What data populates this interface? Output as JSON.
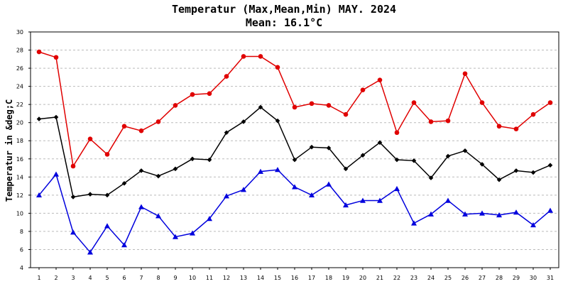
{
  "chart_data": {
    "type": "line",
    "title": "Temperatur (Max,Mean,Min) MAY. 2024",
    "subtitle": "Mean: 16.1°C",
    "xlabel": "",
    "ylabel": "Temperatur in &deg;C",
    "ylim": [
      4,
      30
    ],
    "yticks": [
      "4",
      "6",
      "8",
      "10",
      "12",
      "14",
      "16",
      "18",
      "20",
      "22",
      "24",
      "26",
      "28",
      "30"
    ],
    "grid": true,
    "categories": [
      "1",
      "2",
      "3",
      "4",
      "5",
      "6",
      "7",
      "8",
      "9",
      "10",
      "11",
      "12",
      "13",
      "14",
      "15",
      "16",
      "17",
      "18",
      "19",
      "20",
      "21",
      "22",
      "23",
      "24",
      "25",
      "26",
      "27",
      "28",
      "29",
      "30",
      "31"
    ],
    "series": [
      {
        "name": "Max",
        "color": "#e00000",
        "marker": "circle",
        "values": [
          27.8,
          27.2,
          15.2,
          18.2,
          16.5,
          19.6,
          19.1,
          20.1,
          21.9,
          23.1,
          23.2,
          25.1,
          27.3,
          27.3,
          26.1,
          21.7,
          22.1,
          21.9,
          20.9,
          23.6,
          24.7,
          18.9,
          22.2,
          20.1,
          20.2,
          25.4,
          22.2,
          19.6,
          19.3,
          20.9,
          22.2
        ]
      },
      {
        "name": "Mean",
        "color": "#000000",
        "marker": "diamond",
        "values": [
          20.4,
          20.6,
          11.8,
          12.1,
          12.0,
          13.3,
          14.7,
          14.1,
          14.9,
          16.0,
          15.9,
          18.9,
          20.1,
          21.7,
          20.2,
          15.9,
          17.3,
          17.2,
          14.9,
          16.4,
          17.8,
          15.9,
          15.8,
          13.9,
          16.3,
          16.9,
          15.4,
          13.7,
          14.7,
          14.5,
          15.3
        ]
      },
      {
        "name": "Min",
        "color": "#0000dd",
        "marker": "triangle",
        "values": [
          12.0,
          14.3,
          7.9,
          5.7,
          8.6,
          6.5,
          10.7,
          9.7,
          7.4,
          7.8,
          9.4,
          11.9,
          12.6,
          14.6,
          14.8,
          12.9,
          12.0,
          13.2,
          10.9,
          11.4,
          11.4,
          12.7,
          8.9,
          9.9,
          11.4,
          9.9,
          10.0,
          9.8,
          10.1,
          8.7,
          10.3
        ]
      }
    ]
  }
}
